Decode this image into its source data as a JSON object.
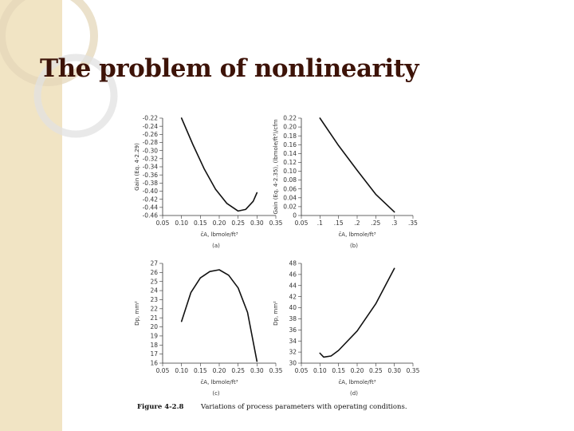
{
  "slide": {
    "title": "The problem of nonlinearity"
  },
  "figure": {
    "caption_label": "Figure 4-2.8",
    "caption_text": "Variations of process parameters with operating conditions."
  },
  "chart_data": [
    {
      "id": "a",
      "type": "line",
      "panel_label": "(a)",
      "ylabel": "Gain (Eq. 4-2.29)",
      "xlabel": "c̄A, lbmole/ft³",
      "ylim": [
        -0.46,
        -0.22
      ],
      "yticks": [
        "-0.22",
        "-0.24",
        "-0.26",
        "-0.28",
        "-0.30",
        "-0.32",
        "-0.34",
        "-0.36",
        "-0.38",
        "-0.40",
        "-0.42",
        "-0.44",
        "-0.46"
      ],
      "xlim": [
        0.05,
        0.35
      ],
      "xticks": [
        "0.05",
        "0.10",
        "0.15",
        "0.20",
        "0.25",
        "0.30",
        "0.35"
      ],
      "series": [
        {
          "color": "#111111",
          "x": [
            0.1,
            0.13,
            0.16,
            0.19,
            0.22,
            0.25,
            0.27,
            0.29,
            0.3
          ],
          "y": [
            -0.22,
            -0.285,
            -0.345,
            -0.395,
            -0.43,
            -0.449,
            -0.445,
            -0.425,
            -0.404
          ]
        }
      ]
    },
    {
      "id": "b",
      "type": "line",
      "panel_label": "(b)",
      "ylabel": "Gain (Eq. 4-2.35), (lbmole/ft³)/cfm",
      "xlabel": "c̄A, lbmole/ft³",
      "ylim": [
        0,
        0.22
      ],
      "yticks": [
        "0.22",
        "0.20",
        "0.18",
        "0.16",
        "0.14",
        "0.12",
        "0.10",
        "0.08",
        "0.06",
        "0.04",
        "0.02",
        "0"
      ],
      "xlim": [
        0.05,
        0.35
      ],
      "xticks": [
        "0.05",
        ".1",
        ".15",
        ".2",
        ".25",
        ".3",
        ".35"
      ],
      "series": [
        {
          "color": "#111111",
          "x": [
            0.1,
            0.15,
            0.2,
            0.25,
            0.3
          ],
          "y": [
            0.22,
            0.158,
            0.102,
            0.048,
            0.008
          ]
        }
      ]
    },
    {
      "id": "c",
      "type": "line",
      "panel_label": "(c)",
      "ylabel": "Dp, mm²",
      "xlabel": "c̄A, lbmole/ft³",
      "ylim": [
        16,
        27
      ],
      "yticks": [
        "27",
        "26",
        "25",
        "24",
        "23",
        "22",
        "21",
        "20",
        "19",
        "18",
        "17",
        "16"
      ],
      "xlim": [
        0.05,
        0.35
      ],
      "xticks": [
        "0.05",
        "0.10",
        "0.15",
        "0.20",
        "0.25",
        "0.30",
        "0.35"
      ],
      "series": [
        {
          "color": "#111111",
          "x": [
            0.1,
            0.125,
            0.15,
            0.175,
            0.2,
            0.225,
            0.25,
            0.275,
            0.3
          ],
          "y": [
            20.6,
            23.8,
            25.4,
            26.1,
            26.3,
            25.7,
            24.3,
            21.6,
            16.2
          ]
        }
      ]
    },
    {
      "id": "d",
      "type": "line",
      "panel_label": "(d)",
      "ylabel": "Dp, mm²",
      "xlabel": "c̄A, lbmole/ft³",
      "ylim": [
        30,
        48
      ],
      "yticks": [
        "48",
        "46",
        "44",
        "42",
        "40",
        "38",
        "36",
        "34",
        "32",
        "30"
      ],
      "xlim": [
        0.05,
        0.35
      ],
      "xticks": [
        "0.05",
        "0.10",
        "0.15",
        "0.20",
        "0.25",
        "0.30",
        "0.35"
      ],
      "series": [
        {
          "color": "#111111",
          "x": [
            0.1,
            0.11,
            0.13,
            0.15,
            0.2,
            0.25,
            0.3
          ],
          "y": [
            31.8,
            31.1,
            31.3,
            32.3,
            35.8,
            40.7,
            47.1
          ]
        }
      ]
    }
  ]
}
